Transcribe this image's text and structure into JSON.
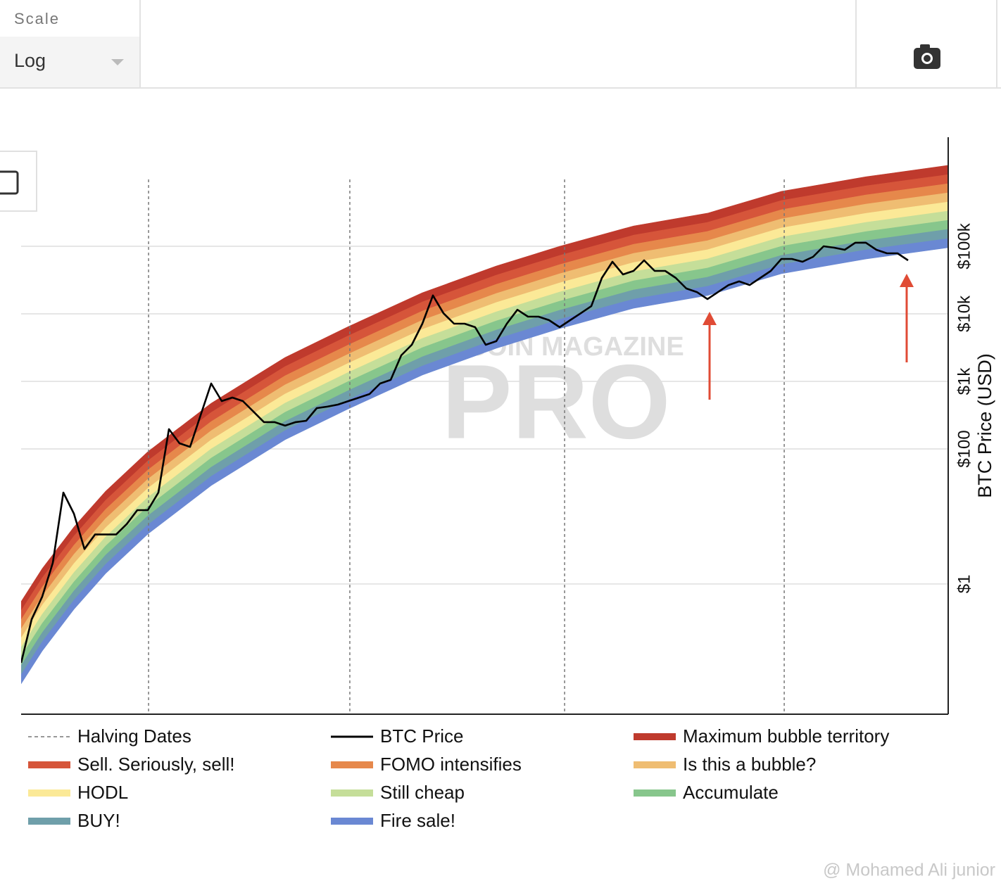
{
  "ui": {
    "scale_label": "Scale",
    "scale_value": "Log",
    "footer": "@ Mohamed Ali junior"
  },
  "chart_data": {
    "type": "line",
    "y_scale": "log",
    "y_axis_side": "right",
    "ylabel": "BTC Price (USD)",
    "watermark": {
      "top": "BITCOIN MAGAZINE",
      "main": "PRO"
    },
    "grid": true,
    "legend_columns": 3,
    "xlim": [
      0,
      87.8
    ],
    "ylim": [
      0.0118,
      4120000
    ],
    "yticks": [
      {
        "value": 1,
        "label": "$1"
      },
      {
        "value": 100,
        "label": "$100"
      },
      {
        "value": 1000,
        "label": "$1k"
      },
      {
        "value": 10000,
        "label": "$10k"
      },
      {
        "value": 100000,
        "label": "$100k"
      }
    ],
    "series": [
      {
        "name": "Halving Dates",
        "kind": "vline",
        "color": "#777777",
        "x": [
          12.07,
          31.13,
          51.47,
          72.27
        ]
      },
      {
        "name": "BTC Price",
        "kind": "line",
        "color": "#000000",
        "values": [
          0.068,
          0.3,
          0.65,
          2.05,
          22.6,
          11.0,
          3.3,
          5.4,
          5.4,
          5.4,
          7.7,
          12.4,
          12.4,
          22.6,
          196,
          121,
          107,
          316,
          931,
          511,
          576,
          511,
          357,
          249,
          249,
          221,
          249,
          261,
          402,
          422,
          453,
          511,
          576,
          649,
          931,
          1050,
          2430,
          3480,
          7150,
          18700,
          10200,
          7150,
          7150,
          6340,
          3480,
          3930,
          7150,
          11500,
          9090,
          9090,
          8060,
          6340,
          8060,
          10200,
          13000,
          34000,
          59000,
          38300,
          43200,
          61900,
          43200,
          43200,
          34000,
          23700,
          21000,
          16500,
          21000,
          26700,
          30200,
          26700,
          34000,
          43200,
          64900,
          64900,
          59000,
          69800,
          100000,
          95400,
          88700,
          113000,
          113000,
          88700,
          78700,
          78700,
          61900
        ]
      },
      {
        "name": "Maximum bubble territory",
        "kind": "band",
        "color": "#bf3a2d",
        "x": [
          0,
          2,
          5,
          8,
          12,
          18,
          25,
          31,
          38,
          45,
          51,
          58,
          65,
          72,
          80,
          87.8
        ],
        "values": [
          0.549,
          1.69,
          6.97,
          23.6,
          90.7,
          474,
          2260,
          6480,
          20500,
          51100,
          99800,
          200000,
          309000,
          650000,
          1070000,
          1580000
        ]
      },
      {
        "name": "Sell. Seriously, sell!",
        "kind": "band",
        "color": "#d6553a",
        "x": [
          0,
          2,
          5,
          8,
          12,
          18,
          25,
          31,
          38,
          45,
          51,
          58,
          65,
          72,
          80,
          87.8
        ],
        "values": [
          0.402,
          1.23,
          5.11,
          17.3,
          66.4,
          347,
          1660,
          4740,
          15000,
          37400,
          73100,
          146000,
          226000,
          476000,
          785000,
          1150000
        ]
      },
      {
        "name": "FOMO intensifies",
        "kind": "band",
        "color": "#e6884b",
        "x": [
          0,
          2,
          5,
          8,
          12,
          18,
          25,
          31,
          38,
          45,
          51,
          58,
          65,
          72,
          80,
          87.8
        ],
        "values": [
          0.294,
          0.904,
          3.74,
          12.7,
          48.6,
          254,
          1210,
          3470,
          11000,
          27400,
          53500,
          107000,
          166000,
          348000,
          575000,
          845000
        ]
      },
      {
        "name": "Is this a bubble?",
        "kind": "band",
        "color": "#efbd72",
        "x": [
          0,
          2,
          5,
          8,
          12,
          18,
          25,
          31,
          38,
          45,
          51,
          58,
          65,
          72,
          80,
          87.8
        ],
        "values": [
          0.215,
          0.662,
          2.74,
          9.28,
          35.6,
          186,
          889,
          2540,
          8050,
          20000,
          39200,
          78500,
          121000,
          255000,
          421000,
          619000
        ]
      },
      {
        "name": "HODL",
        "kind": "band",
        "color": "#fbe997",
        "x": [
          0,
          2,
          5,
          8,
          12,
          18,
          25,
          31,
          38,
          45,
          51,
          58,
          65,
          72,
          80,
          87.8
        ],
        "values": [
          0.158,
          0.485,
          2,
          6.79,
          26.1,
          136,
          651,
          1860,
          5890,
          14700,
          28700,
          57500,
          88800,
          187000,
          308000,
          453000
        ]
      },
      {
        "name": "Still cheap",
        "kind": "band",
        "color": "#c5de99",
        "x": [
          0,
          2,
          5,
          8,
          12,
          18,
          25,
          31,
          38,
          45,
          51,
          58,
          65,
          72,
          80,
          87.8
        ],
        "values": [
          0.115,
          0.355,
          1.47,
          4.97,
          19.1,
          99.8,
          477,
          1360,
          4310,
          10700,
          21000,
          42100,
          65100,
          137000,
          226000,
          332000
        ]
      },
      {
        "name": "Accumulate",
        "kind": "band",
        "color": "#87c68c",
        "x": [
          0,
          2,
          5,
          8,
          12,
          18,
          25,
          31,
          38,
          45,
          51,
          58,
          65,
          72,
          80,
          87.8
        ],
        "values": [
          0.0846,
          0.26,
          1.07,
          3.64,
          14.0,
          73.1,
          349,
          998,
          3160,
          7870,
          15400,
          30800,
          47600,
          100000,
          165000,
          243000
        ]
      },
      {
        "name": "BUY!",
        "kind": "band",
        "color": "#6f9faa",
        "x": [
          0,
          2,
          5,
          8,
          12,
          18,
          25,
          31,
          38,
          45,
          51,
          58,
          65,
          72,
          80,
          87.8
        ],
        "values": [
          0.0619,
          0.19,
          0.787,
          2.67,
          10.2,
          53.5,
          256,
          731,
          2310,
          5760,
          11300,
          22600,
          34900,
          73300,
          121000,
          178000
        ]
      },
      {
        "name": "Fire sale!",
        "kind": "band",
        "color": "#6a88d3",
        "x": [
          0,
          2,
          5,
          8,
          12,
          18,
          25,
          31,
          38,
          45,
          51,
          58,
          65,
          72,
          80,
          87.8
        ],
        "values": [
          0.0453,
          0.139,
          0.576,
          1.95,
          7.5,
          39.2,
          187,
          535,
          1690,
          4220,
          8250,
          16500,
          25500,
          53700,
          88600,
          130000
        ],
        "lower": [
          0.0332,
          0.102,
          0.422,
          1.43,
          5.49,
          28.7,
          137,
          392,
          1240,
          3090,
          6040,
          12100,
          18700,
          39300,
          64900,
          95400
        ]
      }
    ]
  }
}
